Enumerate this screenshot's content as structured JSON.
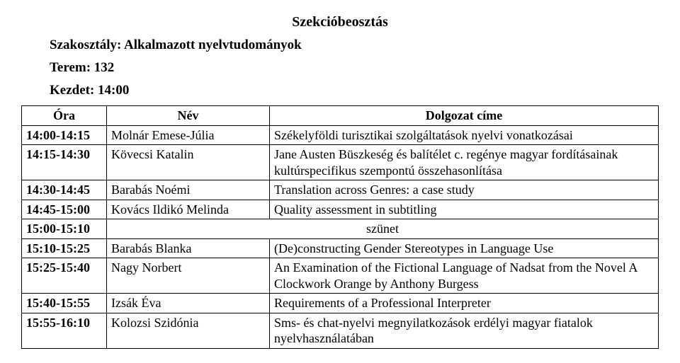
{
  "doc_title": "Szekcióbeosztás",
  "section_label": "Szakosztály: Alkalmazott nyelvtudományok",
  "room_label": "Terem: 132",
  "start_label": "Kezdet: 14:00",
  "headers": {
    "time": "Óra",
    "name": "Név",
    "title": "Dolgozat címe"
  },
  "rows": [
    {
      "time": "14:00-14:15",
      "name": "Molnár Emese-Júlia",
      "title": "Székelyföldi turisztikai szolgáltatások nyelvi vonatkozásai"
    },
    {
      "time": "14:15-14:30",
      "name": "Kövecsi Katalin",
      "title": "Jane Austen Büszkeség és balítélet c. regénye magyar fordításainak kultúrspecifikus szempontú összehasonlítása"
    },
    {
      "time": "14:30-14:45",
      "name": "Barabás Noémi",
      "title": "Translation across Genres: a case study"
    },
    {
      "time": "14:45-15:00",
      "name": "Kovács Ildikó Melinda",
      "title": "Quality assessment in subtitling"
    },
    {
      "time": "15:00-15:10",
      "break": true,
      "break_label": "szünet"
    },
    {
      "time": "15:10-15:25",
      "name": "Barabás Blanka",
      "title": "(De)constructing Gender Stereotypes in Language Use"
    },
    {
      "time": "15:25-15:40",
      "name": "Nagy Norbert",
      "title": "An Examination of the Fictional Language of Nadsat from the Novel A Clockwork Orange by Anthony Burgess"
    },
    {
      "time": "15:40-15:55",
      "name": "Izsák Éva",
      "title": "Requirements of a Professional Interpreter"
    },
    {
      "time": "15:55-16:10",
      "name": "Kolozsi Szidónia",
      "title": "Sms- és chat-nyelvi megnyilatkozások erdélyi magyar fiatalok nyelvhasználatában"
    }
  ]
}
